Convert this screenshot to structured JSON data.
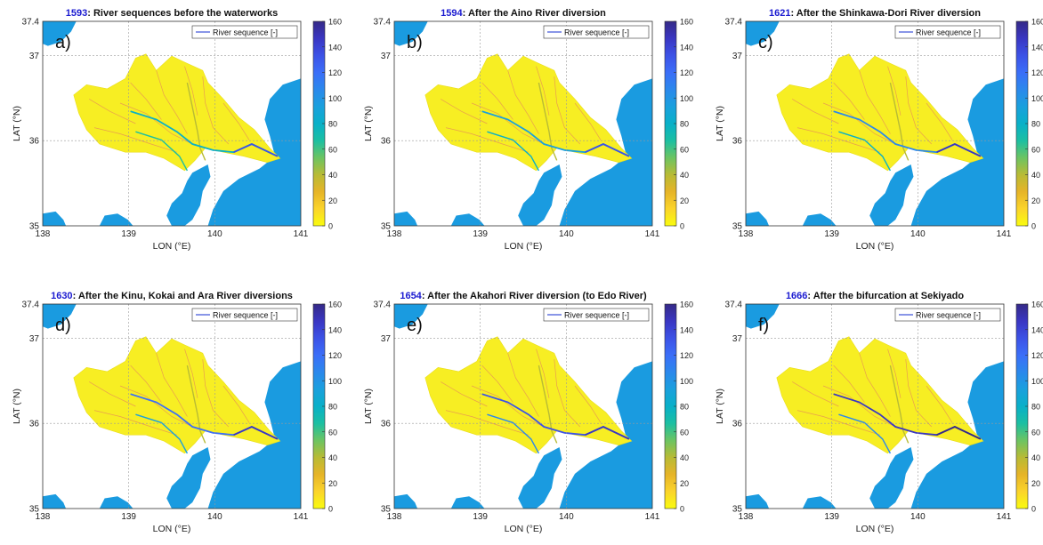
{
  "colors": {
    "sea": "#1a9be0",
    "basin": "#f7ee23",
    "grid": "#9a9a9a",
    "title_year": "#1a1ad0",
    "legend_line": "#3a4fd8",
    "colormap": [
      "#f9fb0e",
      "#fbd42b",
      "#e6b428",
      "#b8bb35",
      "#6cc462",
      "#1bbfa2",
      "#09b0c8",
      "#1aa0dd",
      "#2b88ec",
      "#3b6ef8",
      "#3c52e6",
      "#3a36c2",
      "#352a87"
    ]
  },
  "chart_data": [
    {
      "type": "map",
      "letter": "a)",
      "year": "1593",
      "title": "River sequences before the waterworks",
      "xlabel": "LON (°E)",
      "ylabel": "LAT (°N)",
      "xlim": [
        138,
        141
      ],
      "ylim": [
        35,
        37.4
      ],
      "xticks": [
        "138",
        "139",
        "140",
        "141"
      ],
      "yticks": [
        "35",
        "36",
        "37",
        "37.4"
      ],
      "legend": "River sequence [-]",
      "colorbar": {
        "min": 0,
        "max": 160,
        "ticks": [
          "0",
          "20",
          "40",
          "60",
          "80",
          "100",
          "120",
          "140",
          "160"
        ]
      },
      "grid": true
    },
    {
      "type": "map",
      "letter": "b)",
      "year": "1594",
      "title": "After the Aino River diversion",
      "xlabel": "LON (°E)",
      "ylabel": "LAT (°N)",
      "xlim": [
        138,
        141
      ],
      "ylim": [
        35,
        37.4
      ],
      "xticks": [
        "138",
        "139",
        "140",
        "141"
      ],
      "yticks": [
        "35",
        "36",
        "37",
        "37.4"
      ],
      "legend": "River sequence [-]",
      "colorbar": {
        "min": 0,
        "max": 160,
        "ticks": [
          "0",
          "20",
          "40",
          "60",
          "80",
          "100",
          "120",
          "140",
          "160"
        ]
      },
      "grid": true
    },
    {
      "type": "map",
      "letter": "c)",
      "year": "1621",
      "title": "After the Shinkawa-Dori River diversion",
      "xlabel": "LON (°E)",
      "ylabel": "LAT (°N)",
      "xlim": [
        138,
        141
      ],
      "ylim": [
        35,
        37.4
      ],
      "xticks": [
        "138",
        "139",
        "140",
        "141"
      ],
      "yticks": [
        "35",
        "36",
        "37",
        "37.4"
      ],
      "legend": "River sequence [-]",
      "colorbar": {
        "min": 0,
        "max": 160,
        "ticks": [
          "0",
          "20",
          "40",
          "60",
          "80",
          "100",
          "120",
          "140",
          "160"
        ]
      },
      "grid": true
    },
    {
      "type": "map",
      "letter": "d)",
      "year": "1630",
      "title": "After the Kinu, Kokai and Ara River diversions",
      "xlabel": "LON (°E)",
      "ylabel": "LAT (°N)",
      "xlim": [
        138,
        141
      ],
      "ylim": [
        35,
        37.4
      ],
      "xticks": [
        "138",
        "139",
        "140",
        "141"
      ],
      "yticks": [
        "35",
        "36",
        "37",
        "37.4"
      ],
      "legend": "River sequence [-]",
      "colorbar": {
        "min": 0,
        "max": 160,
        "ticks": [
          "0",
          "20",
          "40",
          "60",
          "80",
          "100",
          "120",
          "140",
          "160"
        ]
      },
      "grid": true
    },
    {
      "type": "map",
      "letter": "e)",
      "year": "1654",
      "title": "After the Akahori River diversion (to Edo River)",
      "xlabel": "LON (°E)",
      "ylabel": "LAT (°N)",
      "xlim": [
        138,
        141
      ],
      "ylim": [
        35,
        37.4
      ],
      "xticks": [
        "138",
        "139",
        "140",
        "141"
      ],
      "yticks": [
        "35",
        "36",
        "37",
        "37.4"
      ],
      "legend": "River sequence [-]",
      "colorbar": {
        "min": 0,
        "max": 160,
        "ticks": [
          "0",
          "20",
          "40",
          "60",
          "80",
          "100",
          "120",
          "140",
          "160"
        ]
      },
      "grid": true
    },
    {
      "type": "map",
      "letter": "f)",
      "year": "1666",
      "title": "After the bifurcation at Sekiyado",
      "xlabel": "LON (°E)",
      "ylabel": "LAT (°N)",
      "xlim": [
        138,
        141
      ],
      "ylim": [
        35,
        37.4
      ],
      "xticks": [
        "138",
        "139",
        "140",
        "141"
      ],
      "yticks": [
        "35",
        "36",
        "37",
        "37.4"
      ],
      "legend": "River sequence [-]",
      "colorbar": {
        "min": 0,
        "max": 160,
        "ticks": [
          "0",
          "20",
          "40",
          "60",
          "80",
          "100",
          "120",
          "140",
          "160"
        ]
      },
      "grid": true
    }
  ]
}
